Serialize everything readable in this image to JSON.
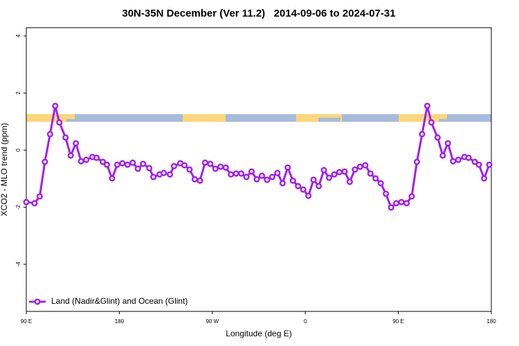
{
  "chart_data": {
    "type": "line",
    "title": "30N-35N December (Ver 11.2)   2014-09-06 to 2024-07-31",
    "xlabel": "Longitude (deg E)",
    "ylabel": "XCO2 - MLO trend (ppm)",
    "x": [
      90,
      98,
      103,
      108,
      113,
      118,
      122,
      128,
      133,
      138,
      143,
      148,
      154,
      158,
      164,
      168,
      173,
      178,
      183,
      188,
      193,
      198,
      203,
      209,
      213,
      219,
      223,
      229,
      233,
      239,
      243,
      248,
      253,
      258,
      263,
      268,
      273,
      278,
      283,
      288,
      293,
      298,
      303,
      308,
      313,
      318,
      323,
      328,
      333,
      338,
      343,
      348,
      353,
      358,
      363,
      368,
      373,
      378,
      383,
      388,
      393,
      398,
      403,
      408,
      413,
      418,
      423,
      428,
      433,
      438,
      443,
      448,
      453,
      458,
      463,
      468,
      473,
      478,
      482,
      488,
      493,
      498,
      503,
      508,
      514,
      518,
      524,
      528,
      533,
      538
    ],
    "series": [
      {
        "name": "Land (Nadir&Glint) and Ocean (Glint)",
        "color": "#a020f0",
        "values": [
          -1.82,
          -1.86,
          -1.62,
          -0.41,
          0.56,
          1.55,
          0.97,
          0.44,
          -0.19,
          0.24,
          -0.39,
          -0.34,
          -0.24,
          -0.27,
          -0.41,
          -0.51,
          -0.99,
          -0.51,
          -0.46,
          -0.51,
          -0.44,
          -0.65,
          -0.48,
          -0.63,
          -0.94,
          -0.85,
          -0.8,
          -0.85,
          -0.56,
          -0.46,
          -0.53,
          -0.68,
          -1.02,
          -1.07,
          -0.44,
          -0.48,
          -0.65,
          -0.58,
          -0.61,
          -0.85,
          -0.82,
          -0.82,
          -0.94,
          -0.75,
          -1.02,
          -0.9,
          -1.04,
          -0.94,
          -0.8,
          -1.16,
          -0.61,
          -1.07,
          -1.26,
          -1.38,
          -1.6,
          -1.04,
          -1.26,
          -0.7,
          -0.97,
          -0.85,
          -0.77,
          -0.75,
          -1.11,
          -0.68,
          -0.58,
          -0.53,
          -0.82,
          -0.99,
          -1.16,
          -1.53,
          -2.01,
          -1.86,
          -1.82,
          -1.86,
          -1.62,
          -0.41,
          0.56,
          1.55,
          0.97,
          0.44,
          -0.19,
          0.24,
          -0.39,
          -0.34,
          -0.24,
          -0.27,
          -0.41,
          -0.51,
          -0.99,
          -0.51
        ]
      }
    ],
    "xlim": [
      90,
      540
    ],
    "xticks": [
      {
        "value": 90,
        "label": "90 E"
      },
      {
        "value": 180,
        "label": "180"
      },
      {
        "value": 270,
        "label": "90 W"
      },
      {
        "value": 360,
        "label": "0"
      },
      {
        "value": 450,
        "label": "90 E"
      },
      {
        "value": 540,
        "label": "180"
      }
    ],
    "ylim": [
      -5.65,
      4.29
    ],
    "yticks": [
      -4,
      -2,
      0,
      2,
      4
    ],
    "legend": "bottom-left"
  }
}
